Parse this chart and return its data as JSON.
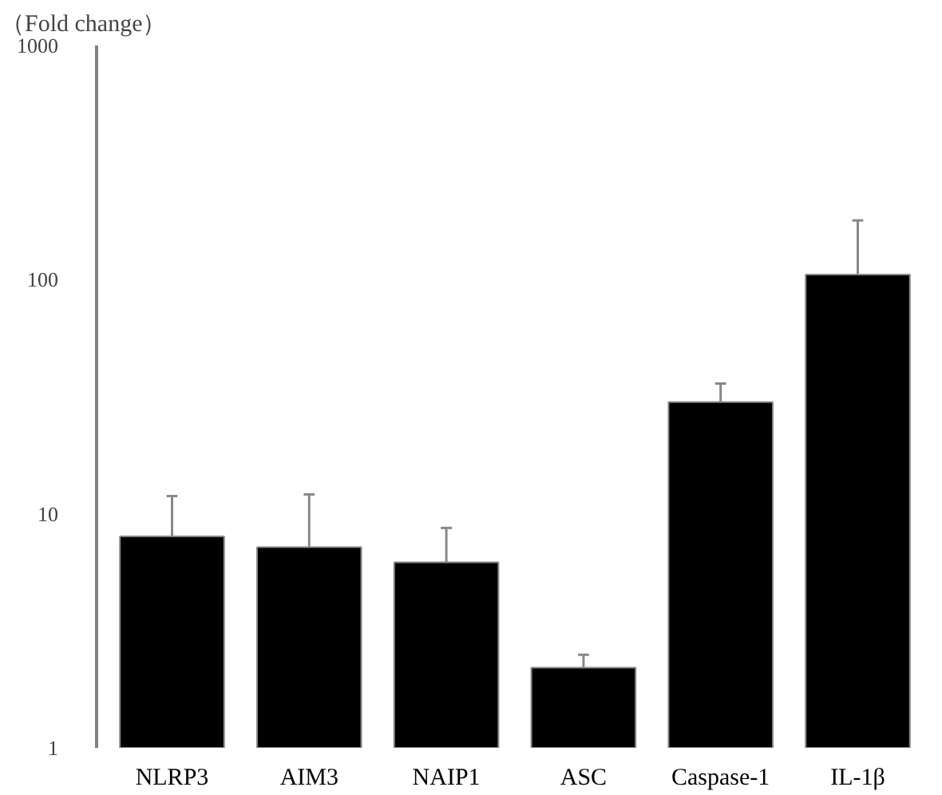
{
  "chart_data": {
    "type": "bar",
    "ylabel": "（Fold change）",
    "categories": [
      "NLRP3",
      "AIM3",
      "NAIP1",
      "ASC",
      "Caspase-1",
      "IL-1β"
    ],
    "values": [
      8.0,
      7.2,
      6.2,
      2.2,
      30,
      105
    ],
    "errors": [
      [
        8.0,
        11.9
      ],
      [
        7.2,
        12.1
      ],
      [
        6.2,
        8.7
      ],
      [
        2.2,
        2.5
      ],
      [
        30,
        36
      ],
      [
        105,
        179
      ]
    ],
    "color": "#000000",
    "log": true,
    "ylim": [
      1,
      1000
    ],
    "yticks": [
      1,
      10,
      100,
      1000
    ],
    "grid": false
  }
}
